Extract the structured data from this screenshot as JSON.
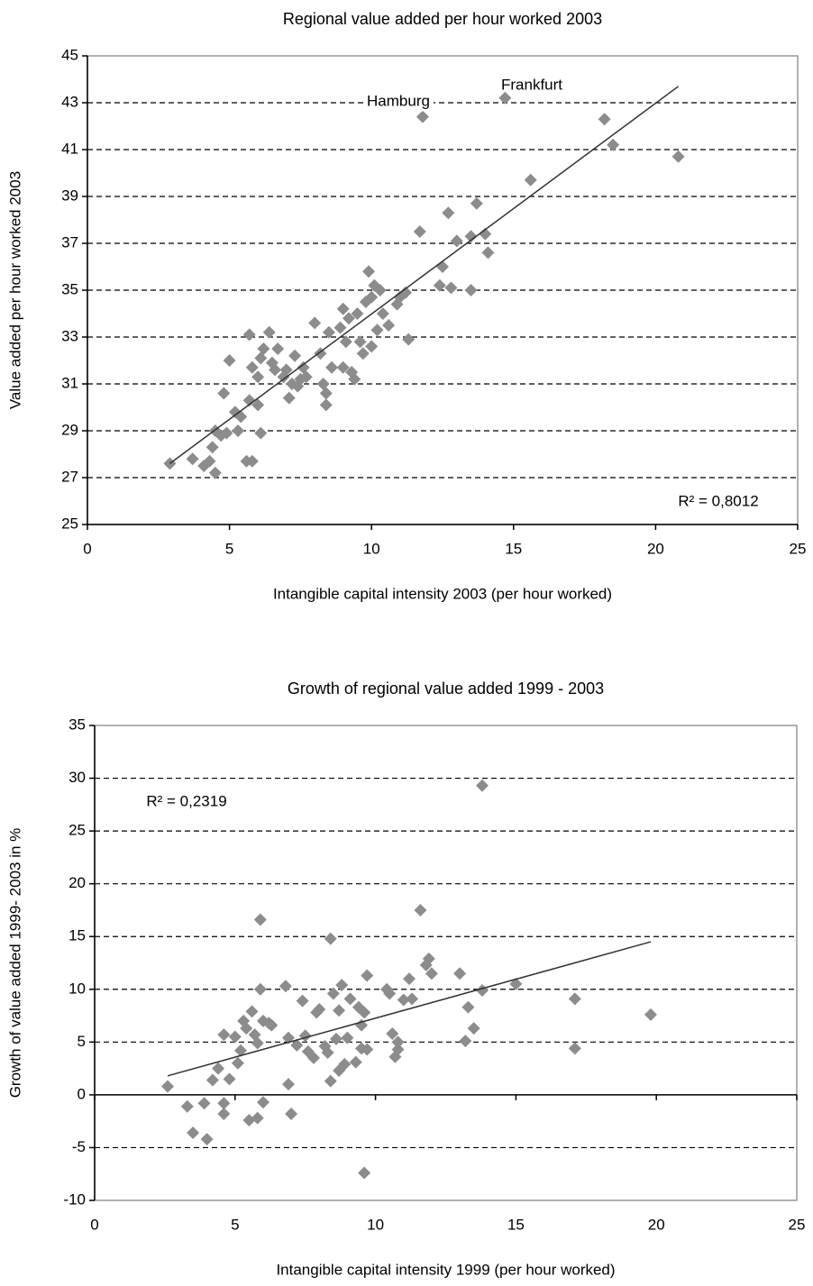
{
  "chart_data": [
    {
      "type": "scatter",
      "title": "Regional value added per hour worked 2003",
      "xlabel": "Intangible capital intensity 2003 (per hour worked)",
      "ylabel": "Value added per hour worked 2003",
      "x": [
        2.9,
        3.7,
        4.1,
        4.3,
        4.5,
        4.4,
        4.5,
        4.7,
        4.9,
        5.3,
        5.2,
        5.4,
        4.8,
        5.0,
        5.6,
        5.8,
        5.7,
        6.0,
        6.1,
        5.7,
        5.8,
        6.0,
        6.1,
        6.2,
        6.4,
        6.5,
        6.6,
        6.7,
        6.9,
        7.0,
        7.1,
        7.2,
        7.3,
        7.4,
        7.5,
        7.6,
        7.7,
        8.0,
        8.2,
        8.3,
        8.4,
        8.4,
        8.5,
        8.6,
        8.9,
        9.0,
        9.0,
        9.1,
        9.2,
        9.3,
        9.4,
        9.5,
        9.6,
        9.7,
        9.8,
        9.9,
        10.0,
        10.0,
        10.1,
        10.2,
        10.3,
        10.4,
        10.6,
        10.9,
        11.0,
        11.2,
        11.3,
        11.7,
        11.8,
        12.4,
        12.5,
        12.7,
        12.8,
        13.0,
        13.5,
        13.5,
        13.7,
        14.0,
        14.1,
        14.7,
        15.6,
        18.2,
        18.5,
        20.8
      ],
      "values": [
        27.6,
        27.8,
        27.5,
        27.7,
        27.2,
        28.3,
        29.0,
        28.8,
        28.9,
        29.0,
        29.8,
        29.6,
        30.6,
        32.0,
        27.7,
        27.7,
        30.3,
        30.1,
        28.9,
        33.1,
        31.7,
        31.3,
        32.1,
        32.5,
        33.2,
        31.9,
        31.6,
        32.5,
        31.3,
        31.6,
        30.4,
        31.0,
        32.2,
        30.9,
        31.2,
        31.7,
        31.3,
        33.6,
        32.3,
        31.0,
        30.1,
        30.6,
        33.2,
        31.7,
        33.4,
        34.2,
        31.7,
        32.8,
        33.8,
        31.5,
        31.2,
        34.0,
        32.8,
        32.3,
        34.5,
        35.8,
        32.6,
        34.7,
        35.2,
        33.3,
        35.0,
        34.0,
        33.5,
        34.4,
        34.7,
        34.9,
        32.9,
        37.5,
        42.4,
        35.2,
        36.0,
        38.3,
        35.1,
        37.1,
        35.0,
        37.3,
        38.7,
        37.4,
        36.6,
        43.2,
        39.7,
        42.3,
        41.2,
        40.7
      ],
      "color": "#8c8c8c",
      "trendline": {
        "x": [
          2.9,
          20.8
        ],
        "values": [
          27.6,
          43.7
        ],
        "color": "#333333"
      },
      "annotations": [
        "Hamburg",
        "Frankfurt",
        "R² = 0,8012"
      ],
      "xlim": [
        0,
        25
      ],
      "xticks": [
        0,
        5,
        10,
        15,
        20,
        25
      ],
      "ylim": [
        25,
        45
      ],
      "yticks": [
        25,
        27,
        29,
        31,
        33,
        35,
        37,
        39,
        41,
        43,
        45
      ],
      "grid": true
    },
    {
      "type": "scatter",
      "title": "Growth of regional value added 1999  - 2003",
      "xlabel": "Intangible capital intensity 1999 (per hour worked)",
      "ylabel": "Growth of value added 1999- 2003 in %",
      "x": [
        2.6,
        3.3,
        3.5,
        3.9,
        4.0,
        4.2,
        4.4,
        4.6,
        4.6,
        4.6,
        4.8,
        5.0,
        5.1,
        5.2,
        5.3,
        5.4,
        5.5,
        5.6,
        5.7,
        5.8,
        5.8,
        5.9,
        5.9,
        6.0,
        6.0,
        6.2,
        6.3,
        6.8,
        6.9,
        6.9,
        7.0,
        7.2,
        7.4,
        7.5,
        7.6,
        7.8,
        7.9,
        8.0,
        8.2,
        8.3,
        8.4,
        8.4,
        8.5,
        8.6,
        8.7,
        8.7,
        8.8,
        8.9,
        9.0,
        9.1,
        9.3,
        9.4,
        9.5,
        9.5,
        9.6,
        9.6,
        9.7,
        9.7,
        10.4,
        10.5,
        10.6,
        10.7,
        10.8,
        10.8,
        11.0,
        11.2,
        11.3,
        11.6,
        11.8,
        11.9,
        12.0,
        13.0,
        13.2,
        13.3,
        13.5,
        13.8,
        13.8,
        15.0,
        17.1,
        17.1,
        19.8
      ],
      "values": [
        0.8,
        -1.1,
        -3.6,
        -0.8,
        -4.2,
        1.4,
        2.5,
        -0.8,
        -1.8,
        5.7,
        1.5,
        5.5,
        3.0,
        4.2,
        7.0,
        6.3,
        -2.4,
        7.9,
        5.7,
        4.9,
        -2.2,
        10.0,
        16.6,
        -0.7,
        7.0,
        6.8,
        6.6,
        10.3,
        1.0,
        5.4,
        -1.8,
        4.7,
        8.9,
        5.6,
        4.1,
        3.5,
        7.8,
        8.1,
        4.6,
        4.0,
        1.3,
        14.8,
        9.6,
        5.3,
        2.3,
        8.0,
        10.4,
        2.9,
        5.4,
        9.1,
        3.1,
        8.3,
        6.6,
        4.4,
        7.8,
        -7.4,
        11.3,
        4.3,
        10.0,
        9.6,
        5.8,
        3.6,
        4.3,
        5.0,
        9.0,
        11.0,
        9.1,
        17.5,
        12.3,
        12.9,
        11.5,
        11.5,
        5.1,
        8.3,
        6.3,
        9.9,
        29.3,
        10.5,
        9.1,
        4.4,
        7.6
      ],
      "color": "#8c8c8c",
      "trendline": {
        "x": [
          2.6,
          19.8
        ],
        "values": [
          1.8,
          14.5
        ],
        "color": "#333333"
      },
      "annotations": [
        "R² = 0,2319"
      ],
      "xlim": [
        0,
        25
      ],
      "xticks": [
        0,
        5,
        10,
        15,
        20,
        25
      ],
      "ylim": [
        -10,
        35
      ],
      "yticks": [
        -10,
        -5,
        0,
        5,
        10,
        15,
        20,
        25,
        30,
        35
      ],
      "grid": true
    }
  ]
}
